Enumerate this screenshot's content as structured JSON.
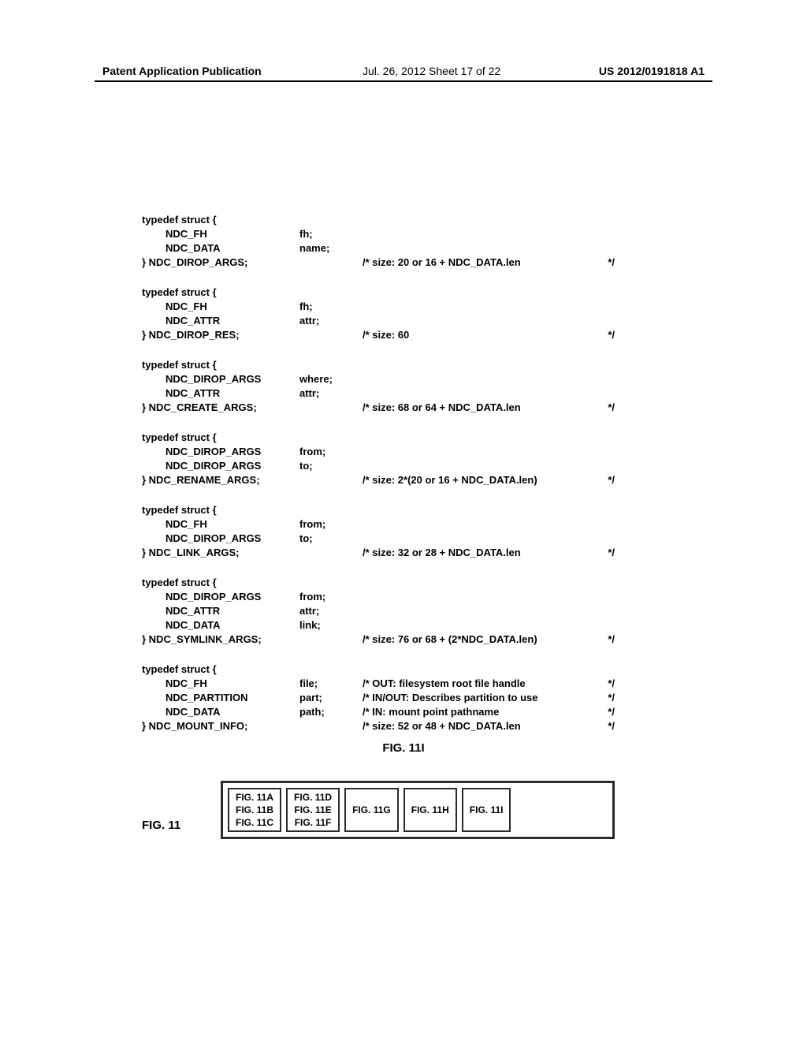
{
  "header": {
    "left": "Patent Application Publication",
    "center": "Jul. 26, 2012  Sheet 17 of 22",
    "right": "US 2012/0191818 A1"
  },
  "structs": [
    {
      "name": "NDC_DIROP_ARGS",
      "fields": [
        {
          "type": "NDC_FH",
          "ident": "fh;"
        },
        {
          "type": "NDC_DATA",
          "ident": "name;"
        }
      ],
      "comment": "/* size: 20 or 16 + NDC_DATA.len",
      "end": "*/"
    },
    {
      "name": "NDC_DIROP_RES",
      "fields": [
        {
          "type": "NDC_FH",
          "ident": "fh;"
        },
        {
          "type": "NDC_ATTR",
          "ident": "attr;"
        }
      ],
      "comment": "/* size: 60",
      "end": "*/"
    },
    {
      "name": "NDC_CREATE_ARGS",
      "fields": [
        {
          "type": "NDC_DIROP_ARGS",
          "ident": "where;"
        },
        {
          "type": "NDC_ATTR",
          "ident": "attr;"
        }
      ],
      "comment": "/* size: 68 or 64 + NDC_DATA.len",
      "end": "*/"
    },
    {
      "name": "NDC_RENAME_ARGS",
      "fields": [
        {
          "type": "NDC_DIROP_ARGS",
          "ident": "from;"
        },
        {
          "type": "NDC_DIROP_ARGS",
          "ident": "to;"
        }
      ],
      "comment": "/* size: 2*(20 or 16 + NDC_DATA.len)",
      "end": "*/"
    },
    {
      "name": "NDC_LINK_ARGS",
      "fields": [
        {
          "type": "NDC_FH",
          "ident": "from;"
        },
        {
          "type": "NDC_DIROP_ARGS",
          "ident": "to;"
        }
      ],
      "comment": "/* size: 32 or 28 + NDC_DATA.len",
      "end": "*/"
    },
    {
      "name": "NDC_SYMLINK_ARGS",
      "fields": [
        {
          "type": "NDC_DIROP_ARGS",
          "ident": "from;"
        },
        {
          "type": "NDC_ATTR",
          "ident": "attr;"
        },
        {
          "type": "NDC_DATA",
          "ident": "link;"
        }
      ],
      "comment": "/* size: 76 or 68 + (2*NDC_DATA.len)",
      "end": "*/"
    },
    {
      "name": "NDC_MOUNT_INFO",
      "fields": [
        {
          "type": "NDC_FH",
          "ident": "file;",
          "fcomment": "/* OUT: filesystem root file handle",
          "fend": "*/"
        },
        {
          "type": "NDC_PARTITION",
          "ident": "part;",
          "fcomment": "/* IN/OUT: Describes partition to use",
          "fend": "*/"
        },
        {
          "type": "NDC_DATA",
          "ident": "path;",
          "fcomment": "/* IN: mount point pathname",
          "fend": "*/"
        }
      ],
      "comment": "/* size: 52 or 48 + NDC_DATA.len",
      "end": "*/"
    }
  ],
  "figure_label": "FIG. 11I",
  "figure_map_label": "FIG. 11",
  "figure_map": [
    [
      "FIG. 11A",
      "FIG. 11B",
      "FIG. 11C"
    ],
    [
      "FIG. 11D",
      "FIG. 11E",
      "FIG. 11F"
    ],
    [
      "FIG. 11G"
    ],
    [
      "FIG. 11H"
    ],
    [
      "FIG. 11I"
    ]
  ]
}
